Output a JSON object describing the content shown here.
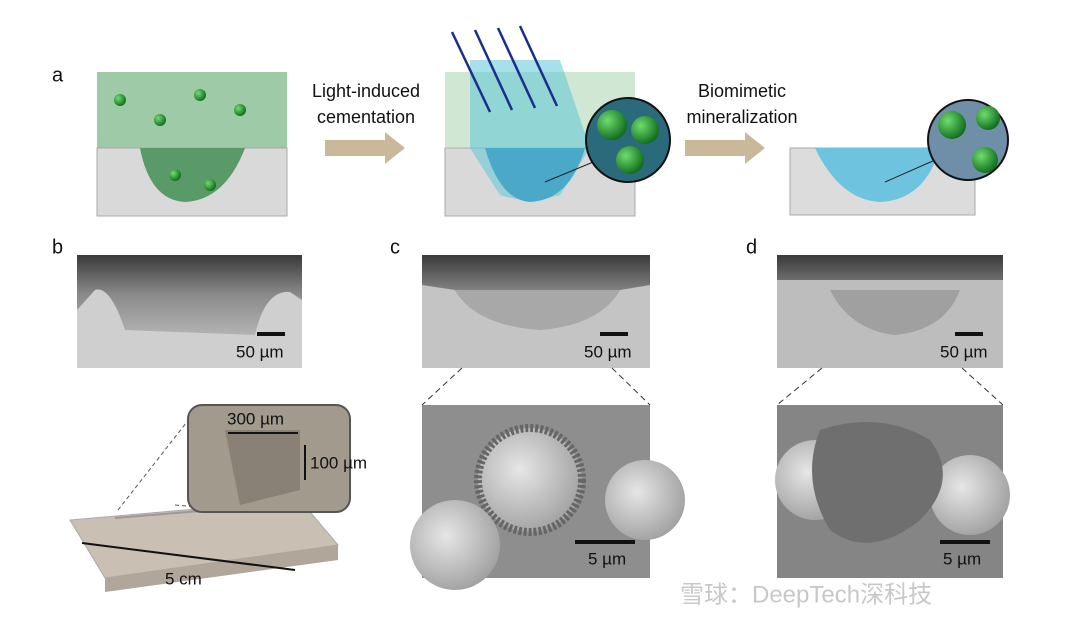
{
  "panel_a": {
    "label": "a",
    "step_1": [
      "Light-induced",
      "cementation"
    ],
    "step_2": [
      "Biomimetic",
      "mineralization"
    ]
  },
  "panel_b": {
    "label": "b",
    "scale_bar": "50 µm",
    "channel_width": "300 µm",
    "channel_depth": "100 µm",
    "length": "5 cm"
  },
  "panel_c": {
    "label": "c",
    "scale_bar_top": "50 µm",
    "scale_bar_bottom": "5 µm"
  },
  "panel_d": {
    "label": "d",
    "scale_bar_top": "50 µm",
    "scale_bar_bottom": "5 µm"
  },
  "watermark": "雪球：DeepTech深科技"
}
